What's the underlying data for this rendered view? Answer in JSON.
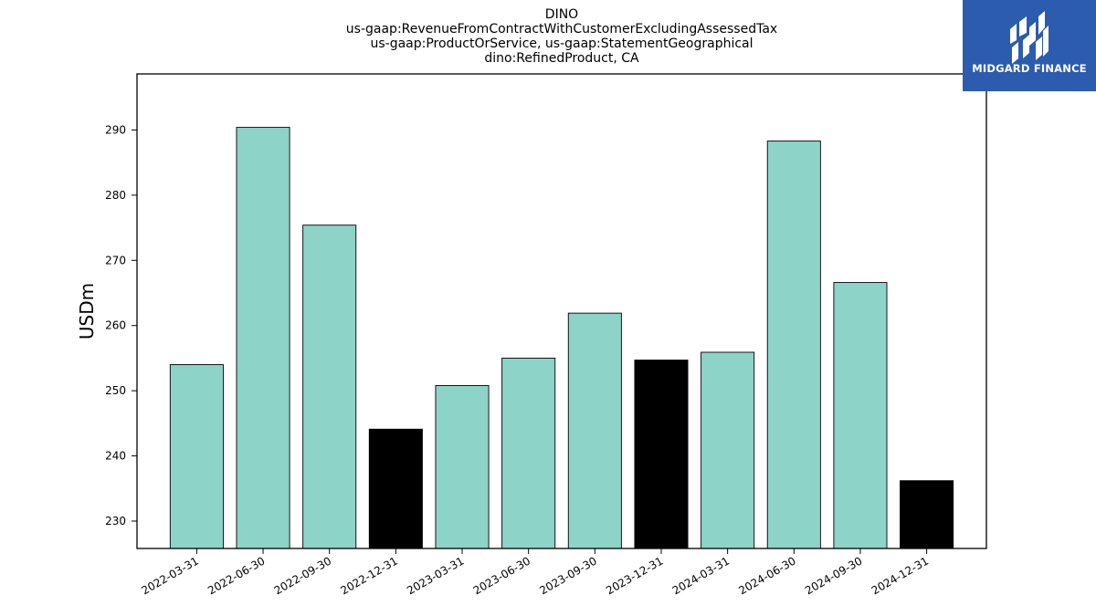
{
  "chart_data": {
    "type": "bar",
    "title_lines": [
      "DINO",
      "us-gaap:RevenueFromContractWithCustomerExcludingAssessedTax",
      "us-gaap:ProductOrService, us-gaap:StatementGeographical",
      "dino:RefinedProduct, CA"
    ],
    "xlabel": "",
    "ylabel": "USDm",
    "categories": [
      "2022-03-31",
      "2022-06-30",
      "2022-09-30",
      "2022-12-31",
      "2023-03-31",
      "2023-06-30",
      "2023-09-30",
      "2023-12-31",
      "2024-03-31",
      "2024-06-30",
      "2024-09-30",
      "2024-12-31"
    ],
    "values": [
      254.0,
      290.4,
      275.4,
      244.1,
      250.8,
      255.0,
      261.9,
      254.7,
      255.9,
      288.3,
      266.6,
      236.2
    ],
    "bar_colors": [
      "#8dd3c7",
      "#8dd3c7",
      "#8dd3c7",
      "#000000",
      "#8dd3c7",
      "#8dd3c7",
      "#8dd3c7",
      "#000000",
      "#8dd3c7",
      "#8dd3c7",
      "#8dd3c7",
      "#000000"
    ],
    "ylim": [
      225.8,
      298.6
    ],
    "yticks": [
      230,
      240,
      250,
      260,
      270,
      280,
      290
    ],
    "grid": false,
    "legend": "none"
  },
  "logo": {
    "text": "MIDGARD FINANCE",
    "background": "#2c5cad"
  }
}
